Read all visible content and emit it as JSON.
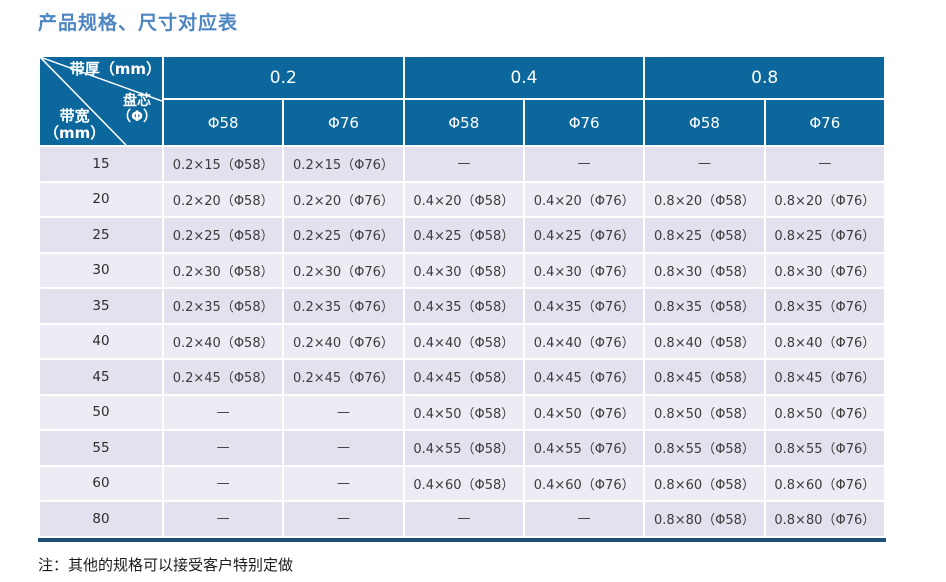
{
  "page": {
    "title": "产品规格、尺寸对应表",
    "note": "注：其他的规格可以接受客户特别定做"
  },
  "colors": {
    "header_blue": "#0c679c",
    "bottom_border_navy": "#1f4e79",
    "title_blue": "#4d86c0",
    "row_odd": "#e3e1ed",
    "row_even": "#edecf4",
    "cell_text": "#3c3c3c"
  },
  "table": {
    "corner": {
      "thickness_label": "带厚（mm）",
      "core_label_line1": "盘芯",
      "core_label_line2": "（Φ）",
      "width_label_line1": "带宽",
      "width_label_line2": "（mm）"
    },
    "thickness_groups": [
      "0.2",
      "0.4",
      "0.8"
    ],
    "core_headers": [
      "Φ58",
      "Φ76",
      "Φ58",
      "Φ76",
      "Φ58",
      "Φ76"
    ],
    "rows": [
      {
        "width": "15",
        "cells": [
          "0.2×15（Φ58）",
          "0.2×15（Φ76）",
          "—",
          "—",
          "—",
          "—"
        ]
      },
      {
        "width": "20",
        "cells": [
          "0.2×20（Φ58）",
          "0.2×20（Φ76）",
          "0.4×20（Φ58）",
          "0.4×20（Φ76）",
          "0.8×20（Φ58）",
          "0.8×20（Φ76）"
        ]
      },
      {
        "width": "25",
        "cells": [
          "0.2×25（Φ58）",
          "0.2×25（Φ76）",
          "0.4×25（Φ58）",
          "0.4×25（Φ76）",
          "0.8×25（Φ58）",
          "0.8×25（Φ76）"
        ]
      },
      {
        "width": "30",
        "cells": [
          "0.2×30（Φ58）",
          "0.2×30（Φ76）",
          "0.4×30（Φ58）",
          "0.4×30（Φ76）",
          "0.8×30（Φ58）",
          "0.8×30（Φ76）"
        ]
      },
      {
        "width": "35",
        "cells": [
          "0.2×35（Φ58）",
          "0.2×35（Φ76）",
          "0.4×35（Φ58）",
          "0.4×35（Φ76）",
          "0.8×35（Φ58）",
          "0.8×35（Φ76）"
        ]
      },
      {
        "width": "40",
        "cells": [
          "0.2×40（Φ58）",
          "0.2×40（Φ76）",
          "0.4×40（Φ58）",
          "0.4×40（Φ76）",
          "0.8×40（Φ58）",
          "0.8×40（Φ76）"
        ]
      },
      {
        "width": "45",
        "cells": [
          "0.2×45（Φ58）",
          "0.2×45（Φ76）",
          "0.4×45（Φ58）",
          "0.4×45（Φ76）",
          "0.8×45（Φ58）",
          "0.8×45（Φ76）"
        ]
      },
      {
        "width": "50",
        "cells": [
          "—",
          "—",
          "0.4×50（Φ58）",
          "0.4×50（Φ76）",
          "0.8×50（Φ58）",
          "0.8×50（Φ76）"
        ]
      },
      {
        "width": "55",
        "cells": [
          "—",
          "—",
          "0.4×55（Φ58）",
          "0.4×55（Φ76）",
          "0.8×55（Φ58）",
          "0.8×55（Φ76）"
        ]
      },
      {
        "width": "60",
        "cells": [
          "—",
          "—",
          "0.4×60（Φ58）",
          "0.4×60（Φ76）",
          "0.8×60（Φ58）",
          "0.8×60（Φ76）"
        ]
      },
      {
        "width": "80",
        "cells": [
          "—",
          "—",
          "—",
          "—",
          "0.8×80（Φ58）",
          "0.8×80（Φ76）"
        ]
      }
    ]
  }
}
